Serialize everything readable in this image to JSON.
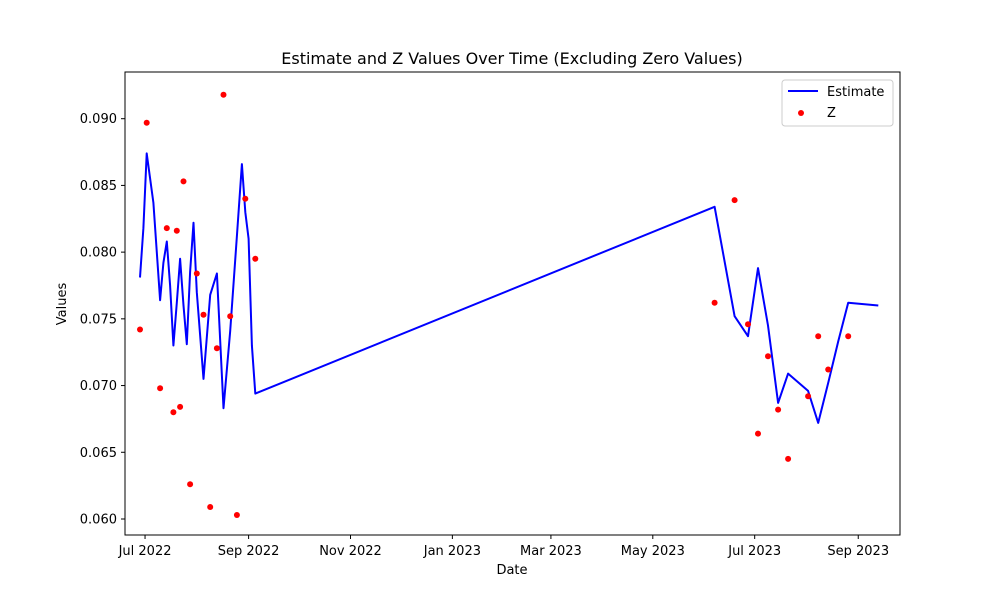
{
  "chart_data": {
    "type": "line",
    "title": "Estimate and Z Values Over Time (Excluding Zero Values)",
    "xlabel": "Date",
    "ylabel": "Values",
    "x_ticks": [
      "Jul 2022",
      "Sep 2022",
      "Nov 2022",
      "Jan 2023",
      "Mar 2023",
      "May 2023",
      "Jul 2023",
      "Sep 2023"
    ],
    "x_tick_dates": [
      "2022-07-01",
      "2022-09-01",
      "2022-11-01",
      "2023-01-01",
      "2023-03-01",
      "2023-05-01",
      "2023-07-01",
      "2023-09-01"
    ],
    "y_ticks": [
      "0.060",
      "0.065",
      "0.070",
      "0.075",
      "0.080",
      "0.085",
      "0.090"
    ],
    "xlim": [
      "2022-06-19",
      "2023-09-26"
    ],
    "ylim": [
      0.0588,
      0.0935
    ],
    "legend_position": "top-right",
    "series": [
      {
        "name": "Estimate",
        "kind": "line",
        "color": "#0000ff",
        "x": [
          "2022-06-28",
          "2022-06-30",
          "2022-07-02",
          "2022-07-06",
          "2022-07-10",
          "2022-07-12",
          "2022-07-14",
          "2022-07-16",
          "2022-07-18",
          "2022-07-20",
          "2022-07-22",
          "2022-07-24",
          "2022-07-26",
          "2022-07-28",
          "2022-07-30",
          "2022-08-01",
          "2022-08-05",
          "2022-08-09",
          "2022-08-13",
          "2022-08-17",
          "2022-08-21",
          "2022-08-25",
          "2022-08-28",
          "2022-08-30",
          "2022-09-01",
          "2022-09-03",
          "2022-09-05",
          "2023-06-07",
          "2023-06-19",
          "2023-06-27",
          "2023-07-03",
          "2023-07-09",
          "2023-07-15",
          "2023-07-21",
          "2023-08-02",
          "2023-08-08",
          "2023-08-14",
          "2023-08-20",
          "2023-08-26",
          "2023-09-13"
        ],
        "y": [
          0.0781,
          0.0818,
          0.0874,
          0.0837,
          0.0764,
          0.0792,
          0.0808,
          0.0775,
          0.073,
          0.0762,
          0.0795,
          0.076,
          0.0731,
          0.0785,
          0.0822,
          0.077,
          0.0705,
          0.0768,
          0.0784,
          0.0683,
          0.0741,
          0.0812,
          0.0866,
          0.083,
          0.081,
          0.073,
          0.0694,
          0.0834,
          0.0752,
          0.0737,
          0.0788,
          0.0745,
          0.0687,
          0.0709,
          0.0696,
          0.0672,
          0.0702,
          0.0733,
          0.0762,
          0.076
        ]
      },
      {
        "name": "Z",
        "kind": "scatter",
        "color": "#ff0000",
        "x": [
          "2022-06-28",
          "2022-07-02",
          "2022-07-10",
          "2022-07-14",
          "2022-07-18",
          "2022-07-20",
          "2022-07-22",
          "2022-07-24",
          "2022-07-28",
          "2022-08-01",
          "2022-08-05",
          "2022-08-09",
          "2022-08-13",
          "2022-08-17",
          "2022-08-21",
          "2022-08-25",
          "2022-08-30",
          "2022-09-05",
          "2023-06-07",
          "2023-06-19",
          "2023-06-27",
          "2023-07-03",
          "2023-07-09",
          "2023-07-15",
          "2023-07-21",
          "2023-08-02",
          "2023-08-08",
          "2023-08-14",
          "2023-08-26"
        ],
        "y": [
          0.0742,
          0.0897,
          0.0698,
          0.0818,
          0.068,
          0.0816,
          0.0684,
          0.0853,
          0.0626,
          0.0784,
          0.0753,
          0.0609,
          0.0728,
          0.0918,
          0.0752,
          0.0603,
          0.084,
          0.0795,
          0.0762,
          0.0839,
          0.0746,
          0.0664,
          0.0722,
          0.0682,
          0.0645,
          0.0692,
          0.0737,
          0.0712,
          0.0737
        ]
      }
    ]
  }
}
